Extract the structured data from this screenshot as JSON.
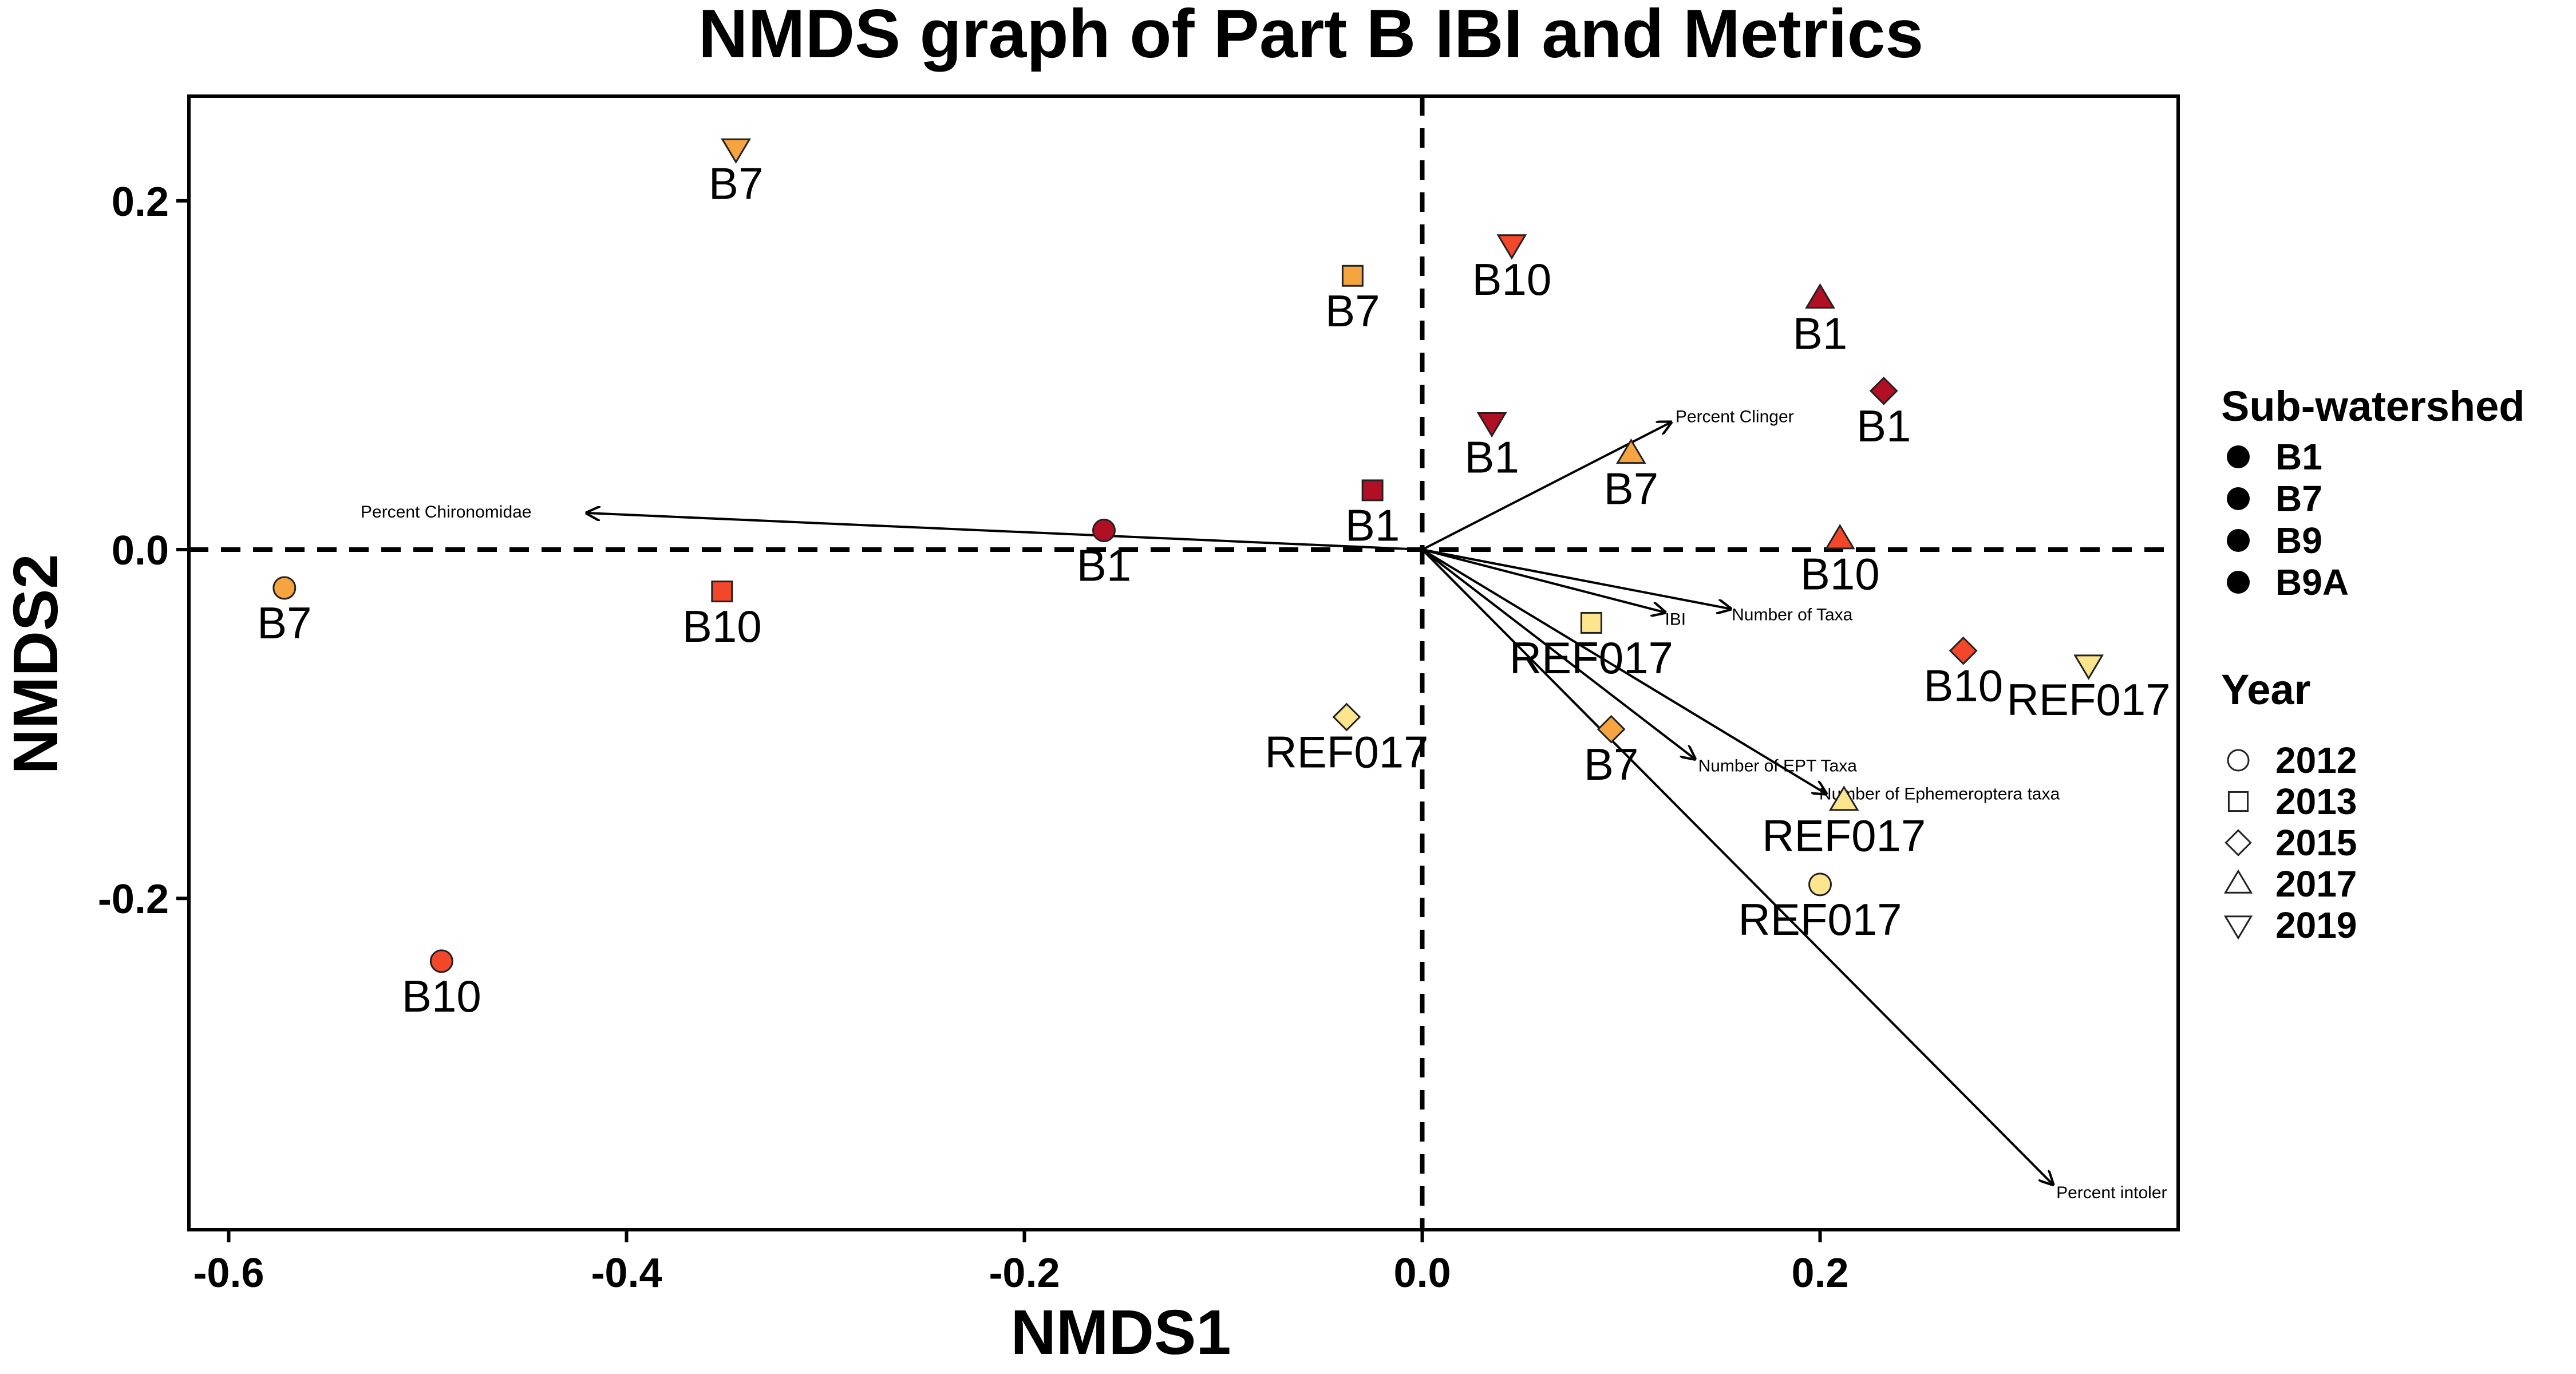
{
  "chart_data": {
    "type": "scatter",
    "title": "NMDS graph of Part B IBI and Metrics",
    "xlabel": "NMDS1",
    "ylabel": "NMDS2",
    "xlim": [
      -0.62,
      0.38
    ],
    "ylim": [
      -0.39,
      0.26
    ],
    "xticks": [
      -0.6,
      -0.4,
      -0.2,
      0.0,
      0.2
    ],
    "yticks": [
      -0.2,
      0.0,
      0.2
    ],
    "xtick_labels": [
      "-0.6",
      "-0.4",
      "-0.2",
      "0.0",
      "0.2"
    ],
    "ytick_labels": [
      "-0.2",
      "0.0",
      "0.2"
    ],
    "grid": false,
    "reference_lines": {
      "x": 0.0,
      "y": 0.0,
      "style": "dashed"
    },
    "legend": {
      "placement": "right",
      "sub_watershed": {
        "title": "Sub-watershed",
        "entries": [
          "B1",
          "B7",
          "B9",
          "B9A"
        ]
      },
      "year": {
        "title": "Year",
        "entries": [
          "2012",
          "2013",
          "2015",
          "2017",
          "2019"
        ]
      }
    },
    "year_shapes": {
      "2012": "circle",
      "2013": "square",
      "2015": "diamond",
      "2017": "triangle-up",
      "2019": "triangle-down"
    },
    "site_colors": {
      "B1": "#b00f24",
      "B7": "#f6a43f",
      "B10": "#f2472a",
      "REF017": "#fde58e"
    },
    "points": [
      {
        "label": "B7",
        "year": "2019",
        "x": -0.345,
        "y": 0.23
      },
      {
        "label": "B7",
        "year": "2013",
        "x": -0.035,
        "y": 0.157
      },
      {
        "label": "B10",
        "year": "2019",
        "x": 0.045,
        "y": 0.175
      },
      {
        "label": "B1",
        "year": "2017",
        "x": 0.2,
        "y": 0.144
      },
      {
        "label": "B1",
        "year": "2015",
        "x": 0.232,
        "y": 0.091
      },
      {
        "label": "B1",
        "year": "2019",
        "x": 0.035,
        "y": 0.073
      },
      {
        "label": "B7",
        "year": "2017",
        "x": 0.105,
        "y": 0.055
      },
      {
        "label": "B1",
        "year": "2013",
        "x": -0.025,
        "y": 0.034
      },
      {
        "label": "B10",
        "year": "2017",
        "x": 0.21,
        "y": 0.006
      },
      {
        "label": "B1",
        "year": "2012",
        "x": -0.16,
        "y": 0.011
      },
      {
        "label": "B7",
        "year": "2012",
        "x": -0.572,
        "y": -0.022
      },
      {
        "label": "B10",
        "year": "2013",
        "x": -0.352,
        "y": -0.024
      },
      {
        "label": "REF017",
        "year": "2013",
        "x": 0.085,
        "y": -0.042
      },
      {
        "label": "B10",
        "year": "2015",
        "x": 0.272,
        "y": -0.058
      },
      {
        "label": "REF017",
        "year": "2019",
        "x": 0.335,
        "y": -0.066
      },
      {
        "label": "REF017",
        "year": "2015",
        "x": -0.038,
        "y": -0.096
      },
      {
        "label": "B7",
        "year": "2015",
        "x": 0.095,
        "y": -0.103
      },
      {
        "label": "REF017",
        "year": "2017",
        "x": 0.212,
        "y": -0.144
      },
      {
        "label": "REF017",
        "year": "2012",
        "x": 0.2,
        "y": -0.192
      },
      {
        "label": "B10",
        "year": "2012",
        "x": -0.493,
        "y": -0.236
      }
    ],
    "vectors": [
      {
        "name": "Percent Chironomidae",
        "x": -0.42,
        "y": 0.021
      },
      {
        "name": "Percent Clinger",
        "x": 0.125,
        "y": 0.073
      },
      {
        "name": "IBI",
        "x": 0.122,
        "y": -0.036
      },
      {
        "name": "Number of Taxa",
        "x": 0.155,
        "y": -0.034
      },
      {
        "name": "Number of EPT Taxa",
        "x": 0.137,
        "y": -0.12
      },
      {
        "name": "Number of Ephemeroptera taxa",
        "x": 0.203,
        "y": -0.14
      },
      {
        "name": "Percent intoler",
        "x": 0.317,
        "y": -0.364
      }
    ]
  }
}
